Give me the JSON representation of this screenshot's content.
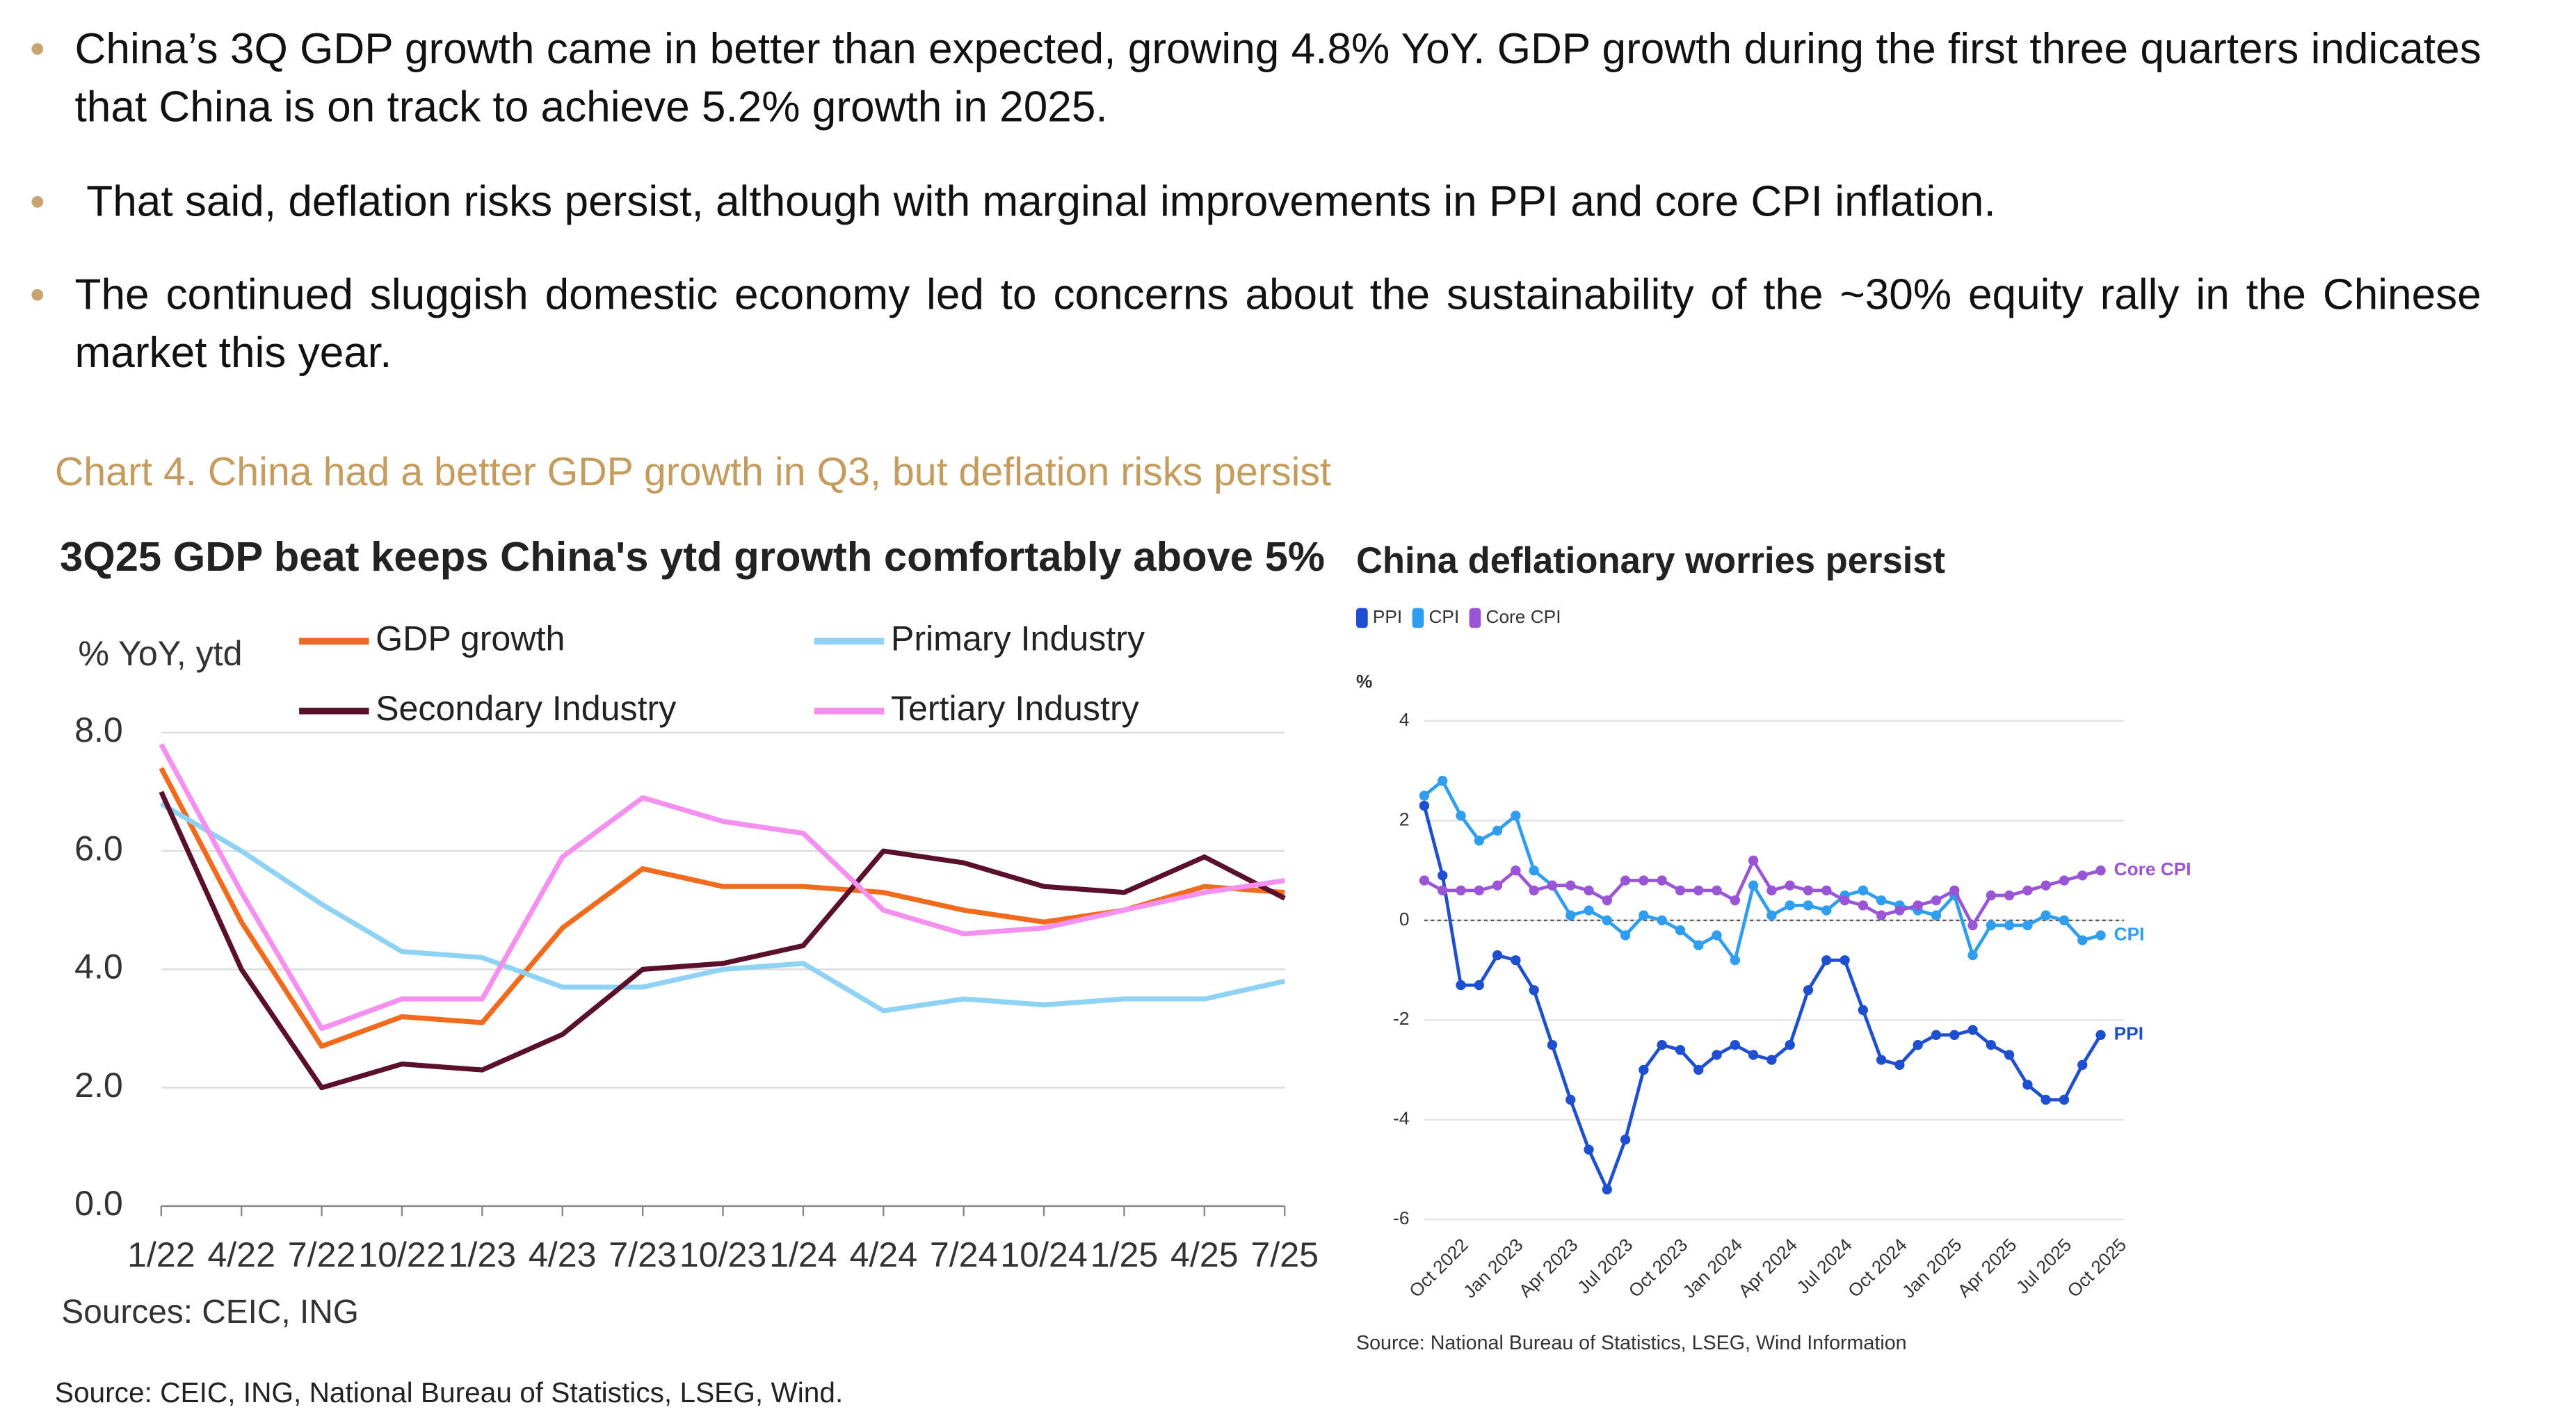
{
  "bullets": [
    "China’s 3Q GDP growth came in better than expected, growing 4.8% YoY. GDP growth during the first three quarters indicates that China is on track to achieve 5.2% growth in 2025.",
    "That said, deflation risks persist, although with marginal improvements in PPI and core CPI inflation.",
    "The continued sluggish domestic economy led to concerns about the sustainability of the ~30% equity rally in the Chinese market this year."
  ],
  "caption": "Chart 4. China had a better GDP growth in Q3, but deflation risks persist",
  "chart_data": [
    {
      "type": "line",
      "title": "3Q25 GDP beat keeps China's ytd growth comfortably above 5%",
      "y_label": "% YoY, ytd",
      "categories": [
        "1/22",
        "4/22",
        "7/22",
        "10/22",
        "1/23",
        "4/23",
        "7/23",
        "10/23",
        "1/24",
        "4/24",
        "7/24",
        "10/24",
        "1/25",
        "4/25",
        "7/25"
      ],
      "series": [
        {
          "name": "GDP growth",
          "color": "#f26a1b",
          "values": [
            7.4,
            4.8,
            2.7,
            3.2,
            3.1,
            4.7,
            5.7,
            5.4,
            5.4,
            5.3,
            5.0,
            4.8,
            5.0,
            5.4,
            5.3
          ]
        },
        {
          "name": "Primary Industry",
          "color": "#8fd3f4",
          "values": [
            6.8,
            6.0,
            5.1,
            4.3,
            4.2,
            3.7,
            3.7,
            4.0,
            4.1,
            3.3,
            3.5,
            3.4,
            3.5,
            3.5,
            3.8
          ]
        },
        {
          "name": "Secondary Industry",
          "color": "#5a0f2a",
          "values": [
            7.0,
            4.0,
            2.0,
            2.4,
            2.3,
            2.9,
            4.0,
            4.1,
            4.4,
            6.0,
            5.8,
            5.4,
            5.3,
            5.9,
            5.2
          ]
        },
        {
          "name": "Tertiary Industry",
          "color": "#f58ff0",
          "values": [
            7.8,
            5.3,
            3.0,
            3.5,
            3.5,
            5.9,
            6.9,
            6.5,
            6.3,
            5.0,
            4.6,
            4.7,
            5.0,
            5.3,
            5.5
          ]
        }
      ],
      "ylim": [
        0,
        8
      ],
      "yticks": [
        {
          "value": 0,
          "label": "0.0"
        },
        {
          "value": 2,
          "label": "2.0"
        },
        {
          "value": 4,
          "label": "4.0"
        },
        {
          "value": 6,
          "label": "6.0"
        },
        {
          "value": 8,
          "label": "8.0"
        }
      ],
      "grid": true,
      "legend": "top",
      "markers": false,
      "source": "Sources: CEIC, ING"
    },
    {
      "type": "line",
      "title": "China deflationary worries persist",
      "y_label": "%",
      "categories": [
        null,
        null,
        "Oct 2022",
        null,
        null,
        "Jan 2023",
        null,
        null,
        "Apr 2023",
        null,
        null,
        "Jul 2023",
        null,
        null,
        "Oct 2023",
        null,
        null,
        "Jan 2024",
        null,
        null,
        "Apr 2024",
        null,
        null,
        "Jul 2024",
        null,
        null,
        "Oct 2024",
        null,
        null,
        "Jan 2025",
        null,
        null,
        "Apr 2025",
        null,
        null,
        "Jul 2025",
        null,
        null,
        "Oct 2025"
      ],
      "series": [
        {
          "name": "PPI",
          "color": "#1f4fd1",
          "values": [
            2.3,
            0.9,
            -1.3,
            -1.3,
            -0.7,
            -0.8,
            -1.4,
            -2.5,
            -3.6,
            -4.6,
            -5.4,
            -4.4,
            -3.0,
            -2.5,
            -2.6,
            -3.0,
            -2.7,
            -2.5,
            -2.7,
            -2.8,
            -2.5,
            -1.4,
            -0.8,
            -0.8,
            -1.8,
            -2.8,
            -2.9,
            -2.5,
            -2.3,
            -2.3,
            -2.2,
            -2.5,
            -2.7,
            -3.3,
            -3.6,
            -3.6,
            -2.9,
            -2.3,
            null
          ]
        },
        {
          "name": "CPI",
          "color": "#2f9df0",
          "values": [
            2.5,
            2.8,
            2.1,
            1.6,
            1.8,
            2.1,
            1.0,
            0.7,
            0.1,
            0.2,
            0.0,
            -0.3,
            0.1,
            0.0,
            -0.2,
            -0.5,
            -0.3,
            -0.8,
            0.7,
            0.1,
            0.3,
            0.3,
            0.2,
            0.5,
            0.6,
            0.4,
            0.3,
            0.2,
            0.1,
            0.5,
            -0.7,
            -0.1,
            -0.1,
            -0.1,
            0.1,
            0.0,
            -0.4,
            -0.3,
            null
          ]
        },
        {
          "name": "Core CPI",
          "color": "#9a55d6",
          "values": [
            0.8,
            0.6,
            0.6,
            0.6,
            0.7,
            1.0,
            0.6,
            0.7,
            0.7,
            0.6,
            0.4,
            0.8,
            0.8,
            0.8,
            0.6,
            0.6,
            0.6,
            0.4,
            1.2,
            0.6,
            0.7,
            0.6,
            0.6,
            0.4,
            0.3,
            0.1,
            0.2,
            0.3,
            0.4,
            0.6,
            -0.1,
            0.5,
            0.5,
            0.6,
            0.7,
            0.8,
            0.9,
            1.0,
            null
          ]
        }
      ],
      "ylim": [
        -6,
        4
      ],
      "yticks": [
        -6,
        -4,
        -2,
        0,
        2,
        4
      ],
      "grid": true,
      "zero_line": true,
      "legend": "top",
      "markers": true,
      "end_labels": true,
      "source": "Source: National Bureau of Statistics, LSEG, Wind Information"
    }
  ],
  "footer": "Source: CEIC, ING, National Bureau of Statistics, LSEG, Wind."
}
